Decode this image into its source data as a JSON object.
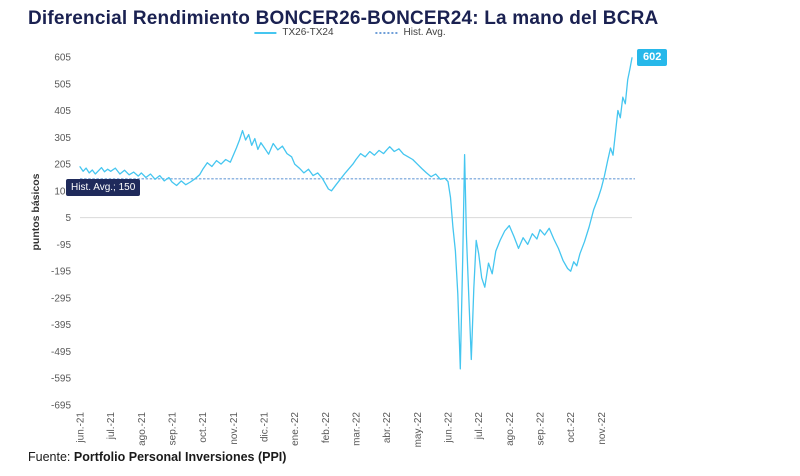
{
  "header": {
    "title": "Diferencial Rendimiento BONCER26-BONCER24: La mano del BCRA"
  },
  "legend": {
    "series_label": "TX26-TX24",
    "avg_label": "Hist. Avg."
  },
  "annotations": {
    "hist_avg": "Hist. Avg.; 150",
    "last_value": "602"
  },
  "footer": {
    "prefix": "Fuente: ",
    "source": "Portfolio Personal Inversiones (PPI)"
  },
  "colors": {
    "title": "#1a2151",
    "series": "#45c6f0",
    "avg_line": "#6f9fd8",
    "grid": "#d9d9d9",
    "annotation_dark": "#1f2a5b",
    "annotation_light": "#27b8ea"
  },
  "chart_data": {
    "type": "line",
    "title": "Diferencial Rendimiento BONCER26-BONCER24: La mano del BCRA",
    "xlabel": "",
    "ylabel": "puntos básicos",
    "ylim": [
      -695,
      605
    ],
    "yticks": [
      605,
      505,
      405,
      305,
      205,
      105,
      5,
      -95,
      -195,
      -295,
      -395,
      -495,
      -595,
      -695
    ],
    "x_range": [
      0,
      18
    ],
    "xticklabels": [
      "jun.-21",
      "jul.-21",
      "ago.-21",
      "sep.-21",
      "oct.-21",
      "nov.-21",
      "dic.-21",
      "ene.-22",
      "feb.-22",
      "mar.-22",
      "abr.-22",
      "may.-22",
      "jun.-22",
      "jul.-22",
      "ago.-22",
      "sep.-22",
      "oct.-22",
      "nov.-22"
    ],
    "grid": "horizontal-minimal",
    "legend_position": "top-center",
    "hist_avg": 150,
    "zero_gridline": 5,
    "last_value": 602,
    "series": [
      {
        "name": "TX26-TX24",
        "color": "#45c6f0",
        "points": [
          [
            0,
            195
          ],
          [
            0.1,
            178
          ],
          [
            0.2,
            190
          ],
          [
            0.3,
            172
          ],
          [
            0.4,
            183
          ],
          [
            0.5,
            168
          ],
          [
            0.6,
            180
          ],
          [
            0.7,
            192
          ],
          [
            0.8,
            176
          ],
          [
            0.9,
            186
          ],
          [
            1,
            178
          ],
          [
            1.15,
            190
          ],
          [
            1.3,
            168
          ],
          [
            1.45,
            182
          ],
          [
            1.6,
            165
          ],
          [
            1.75,
            175
          ],
          [
            1.9,
            160
          ],
          [
            2,
            172
          ],
          [
            2.15,
            155
          ],
          [
            2.3,
            168
          ],
          [
            2.45,
            148
          ],
          [
            2.6,
            162
          ],
          [
            2.75,
            142
          ],
          [
            2.9,
            155
          ],
          [
            3,
            138
          ],
          [
            3.15,
            125
          ],
          [
            3.3,
            142
          ],
          [
            3.45,
            128
          ],
          [
            3.6,
            138
          ],
          [
            3.75,
            150
          ],
          [
            3.9,
            165
          ],
          [
            4,
            185
          ],
          [
            4.15,
            210
          ],
          [
            4.3,
            196
          ],
          [
            4.45,
            218
          ],
          [
            4.6,
            205
          ],
          [
            4.75,
            222
          ],
          [
            4.9,
            212
          ],
          [
            5,
            238
          ],
          [
            5.1,
            265
          ],
          [
            5.2,
            295
          ],
          [
            5.3,
            330
          ],
          [
            5.4,
            295
          ],
          [
            5.5,
            315
          ],
          [
            5.6,
            275
          ],
          [
            5.7,
            300
          ],
          [
            5.8,
            260
          ],
          [
            5.9,
            285
          ],
          [
            6,
            268
          ],
          [
            6.15,
            242
          ],
          [
            6.3,
            282
          ],
          [
            6.45,
            258
          ],
          [
            6.6,
            272
          ],
          [
            6.75,
            244
          ],
          [
            6.9,
            232
          ],
          [
            7,
            205
          ],
          [
            7.15,
            190
          ],
          [
            7.3,
            172
          ],
          [
            7.45,
            186
          ],
          [
            7.6,
            162
          ],
          [
            7.75,
            172
          ],
          [
            7.9,
            152
          ],
          [
            8,
            132
          ],
          [
            8.1,
            112
          ],
          [
            8.2,
            105
          ],
          [
            8.35,
            128
          ],
          [
            8.5,
            150
          ],
          [
            8.65,
            172
          ],
          [
            8.8,
            192
          ],
          [
            8.9,
            205
          ],
          [
            9,
            222
          ],
          [
            9.15,
            244
          ],
          [
            9.3,
            232
          ],
          [
            9.45,
            252
          ],
          [
            9.6,
            238
          ],
          [
            9.75,
            256
          ],
          [
            9.9,
            244
          ],
          [
            10,
            258
          ],
          [
            10.1,
            270
          ],
          [
            10.25,
            252
          ],
          [
            10.4,
            262
          ],
          [
            10.55,
            242
          ],
          [
            10.7,
            232
          ],
          [
            10.85,
            222
          ],
          [
            11,
            205
          ],
          [
            11.15,
            188
          ],
          [
            11.3,
            172
          ],
          [
            11.45,
            158
          ],
          [
            11.6,
            168
          ],
          [
            11.75,
            148
          ],
          [
            11.9,
            152
          ],
          [
            12,
            140
          ],
          [
            12.08,
            80
          ],
          [
            12.16,
            -30
          ],
          [
            12.24,
            -120
          ],
          [
            12.32,
            -280
          ],
          [
            12.4,
            -560
          ],
          [
            12.48,
            -150
          ],
          [
            12.54,
            240
          ],
          [
            12.6,
            -60
          ],
          [
            12.68,
            -300
          ],
          [
            12.76,
            -525
          ],
          [
            12.84,
            -260
          ],
          [
            12.92,
            -80
          ],
          [
            13,
            -130
          ],
          [
            13.1,
            -220
          ],
          [
            13.2,
            -255
          ],
          [
            13.32,
            -165
          ],
          [
            13.44,
            -205
          ],
          [
            13.56,
            -120
          ],
          [
            13.7,
            -80
          ],
          [
            13.85,
            -45
          ],
          [
            14,
            -25
          ],
          [
            14.15,
            -65
          ],
          [
            14.3,
            -110
          ],
          [
            14.45,
            -70
          ],
          [
            14.6,
            -95
          ],
          [
            14.75,
            -55
          ],
          [
            14.9,
            -75
          ],
          [
            15,
            -40
          ],
          [
            15.15,
            -60
          ],
          [
            15.3,
            -35
          ],
          [
            15.45,
            -75
          ],
          [
            15.6,
            -110
          ],
          [
            15.75,
            -155
          ],
          [
            15.9,
            -185
          ],
          [
            16,
            -195
          ],
          [
            16.1,
            -160
          ],
          [
            16.2,
            -175
          ],
          [
            16.3,
            -130
          ],
          [
            16.45,
            -85
          ],
          [
            16.6,
            -30
          ],
          [
            16.75,
            35
          ],
          [
            16.9,
            80
          ],
          [
            17,
            115
          ],
          [
            17.1,
            160
          ],
          [
            17.2,
            215
          ],
          [
            17.3,
            265
          ],
          [
            17.38,
            238
          ],
          [
            17.46,
            320
          ],
          [
            17.54,
            405
          ],
          [
            17.62,
            378
          ],
          [
            17.7,
            455
          ],
          [
            17.78,
            430
          ],
          [
            17.86,
            520
          ],
          [
            17.93,
            560
          ],
          [
            18,
            602
          ]
        ]
      },
      {
        "name": "Hist. Avg.",
        "style": "dotted",
        "constant_value": 150
      }
    ]
  }
}
